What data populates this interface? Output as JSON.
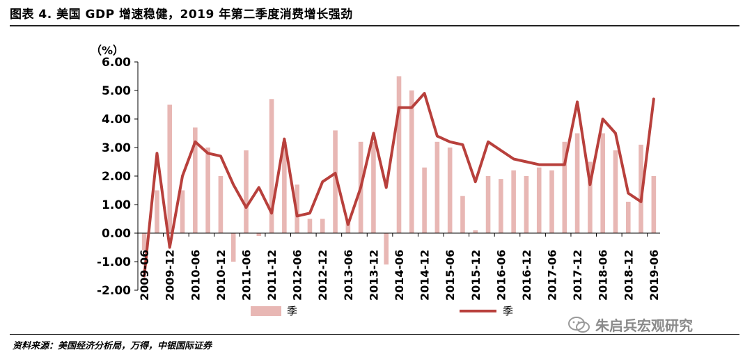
{
  "header": {
    "title": "图表 4. 美国 GDP 增速稳健，2019 年第二季度消费增长强劲"
  },
  "footer": {
    "source": "资料来源：美国经济分析局，万得，中银国际证券",
    "watermark": "朱启兵宏观研究"
  },
  "colors": {
    "bar": "#e8b7b4",
    "line": "#b8403c",
    "axis": "#000000"
  },
  "chart_data": {
    "type": "bar",
    "ylabel": "（%）",
    "ylim": [
      -2,
      6
    ],
    "yticks": [
      "6.00",
      "5.00",
      "4.00",
      "3.00",
      "2.00",
      "1.00",
      "0.00",
      "-1.00",
      "-2.00"
    ],
    "grid": false,
    "legend_position": "bottom",
    "x_tick_labels": [
      "2009-06",
      "2009-12",
      "2010-06",
      "2010-12",
      "2011-06",
      "2011-12",
      "2012-06",
      "2012-12",
      "2013-06",
      "2013-12",
      "2014-06",
      "2014-12",
      "2015-06",
      "2015-12",
      "2016-06",
      "2016-12",
      "2017-06",
      "2017-12",
      "2018-06",
      "2018-12",
      "2019-06"
    ],
    "categories": [
      "2009-06",
      "2009-09",
      "2009-12",
      "2010-03",
      "2010-06",
      "2010-09",
      "2010-12",
      "2011-03",
      "2011-06",
      "2011-09",
      "2011-12",
      "2012-03",
      "2012-06",
      "2012-09",
      "2012-12",
      "2013-03",
      "2013-06",
      "2013-09",
      "2013-12",
      "2014-03",
      "2014-06",
      "2014-09",
      "2014-12",
      "2015-03",
      "2015-06",
      "2015-09",
      "2015-12",
      "2016-03",
      "2016-06",
      "2016-09",
      "2016-12",
      "2017-03",
      "2017-06",
      "2017-09",
      "2017-12",
      "2018-03",
      "2018-06",
      "2018-09",
      "2018-12",
      "2019-03",
      "2019-06"
    ],
    "series": [
      {
        "name": "季",
        "kind": "bar",
        "values": [
          -0.6,
          1.5,
          4.5,
          1.5,
          3.7,
          3.0,
          2.0,
          -1.0,
          2.9,
          -0.1,
          4.7,
          3.2,
          1.7,
          0.5,
          0.5,
          3.6,
          0.5,
          3.2,
          3.2,
          -1.1,
          5.5,
          5.0,
          2.3,
          3.2,
          3.0,
          1.3,
          0.1,
          2.0,
          1.9,
          2.2,
          2.0,
          2.3,
          2.2,
          3.2,
          3.5,
          2.5,
          3.5,
          2.9,
          1.1,
          3.1,
          2.0
        ]
      },
      {
        "name": "季",
        "kind": "line",
        "values": [
          -1.5,
          2.8,
          -0.5,
          2.0,
          3.2,
          2.8,
          2.7,
          1.7,
          0.9,
          1.6,
          0.7,
          3.3,
          0.6,
          0.7,
          1.8,
          2.1,
          0.3,
          1.6,
          3.5,
          1.6,
          4.4,
          4.4,
          4.9,
          3.4,
          3.2,
          3.1,
          1.8,
          3.2,
          2.9,
          2.6,
          2.5,
          2.4,
          2.4,
          2.4,
          4.6,
          1.7,
          4.0,
          3.5,
          1.4,
          1.1,
          4.7
        ]
      }
    ]
  }
}
